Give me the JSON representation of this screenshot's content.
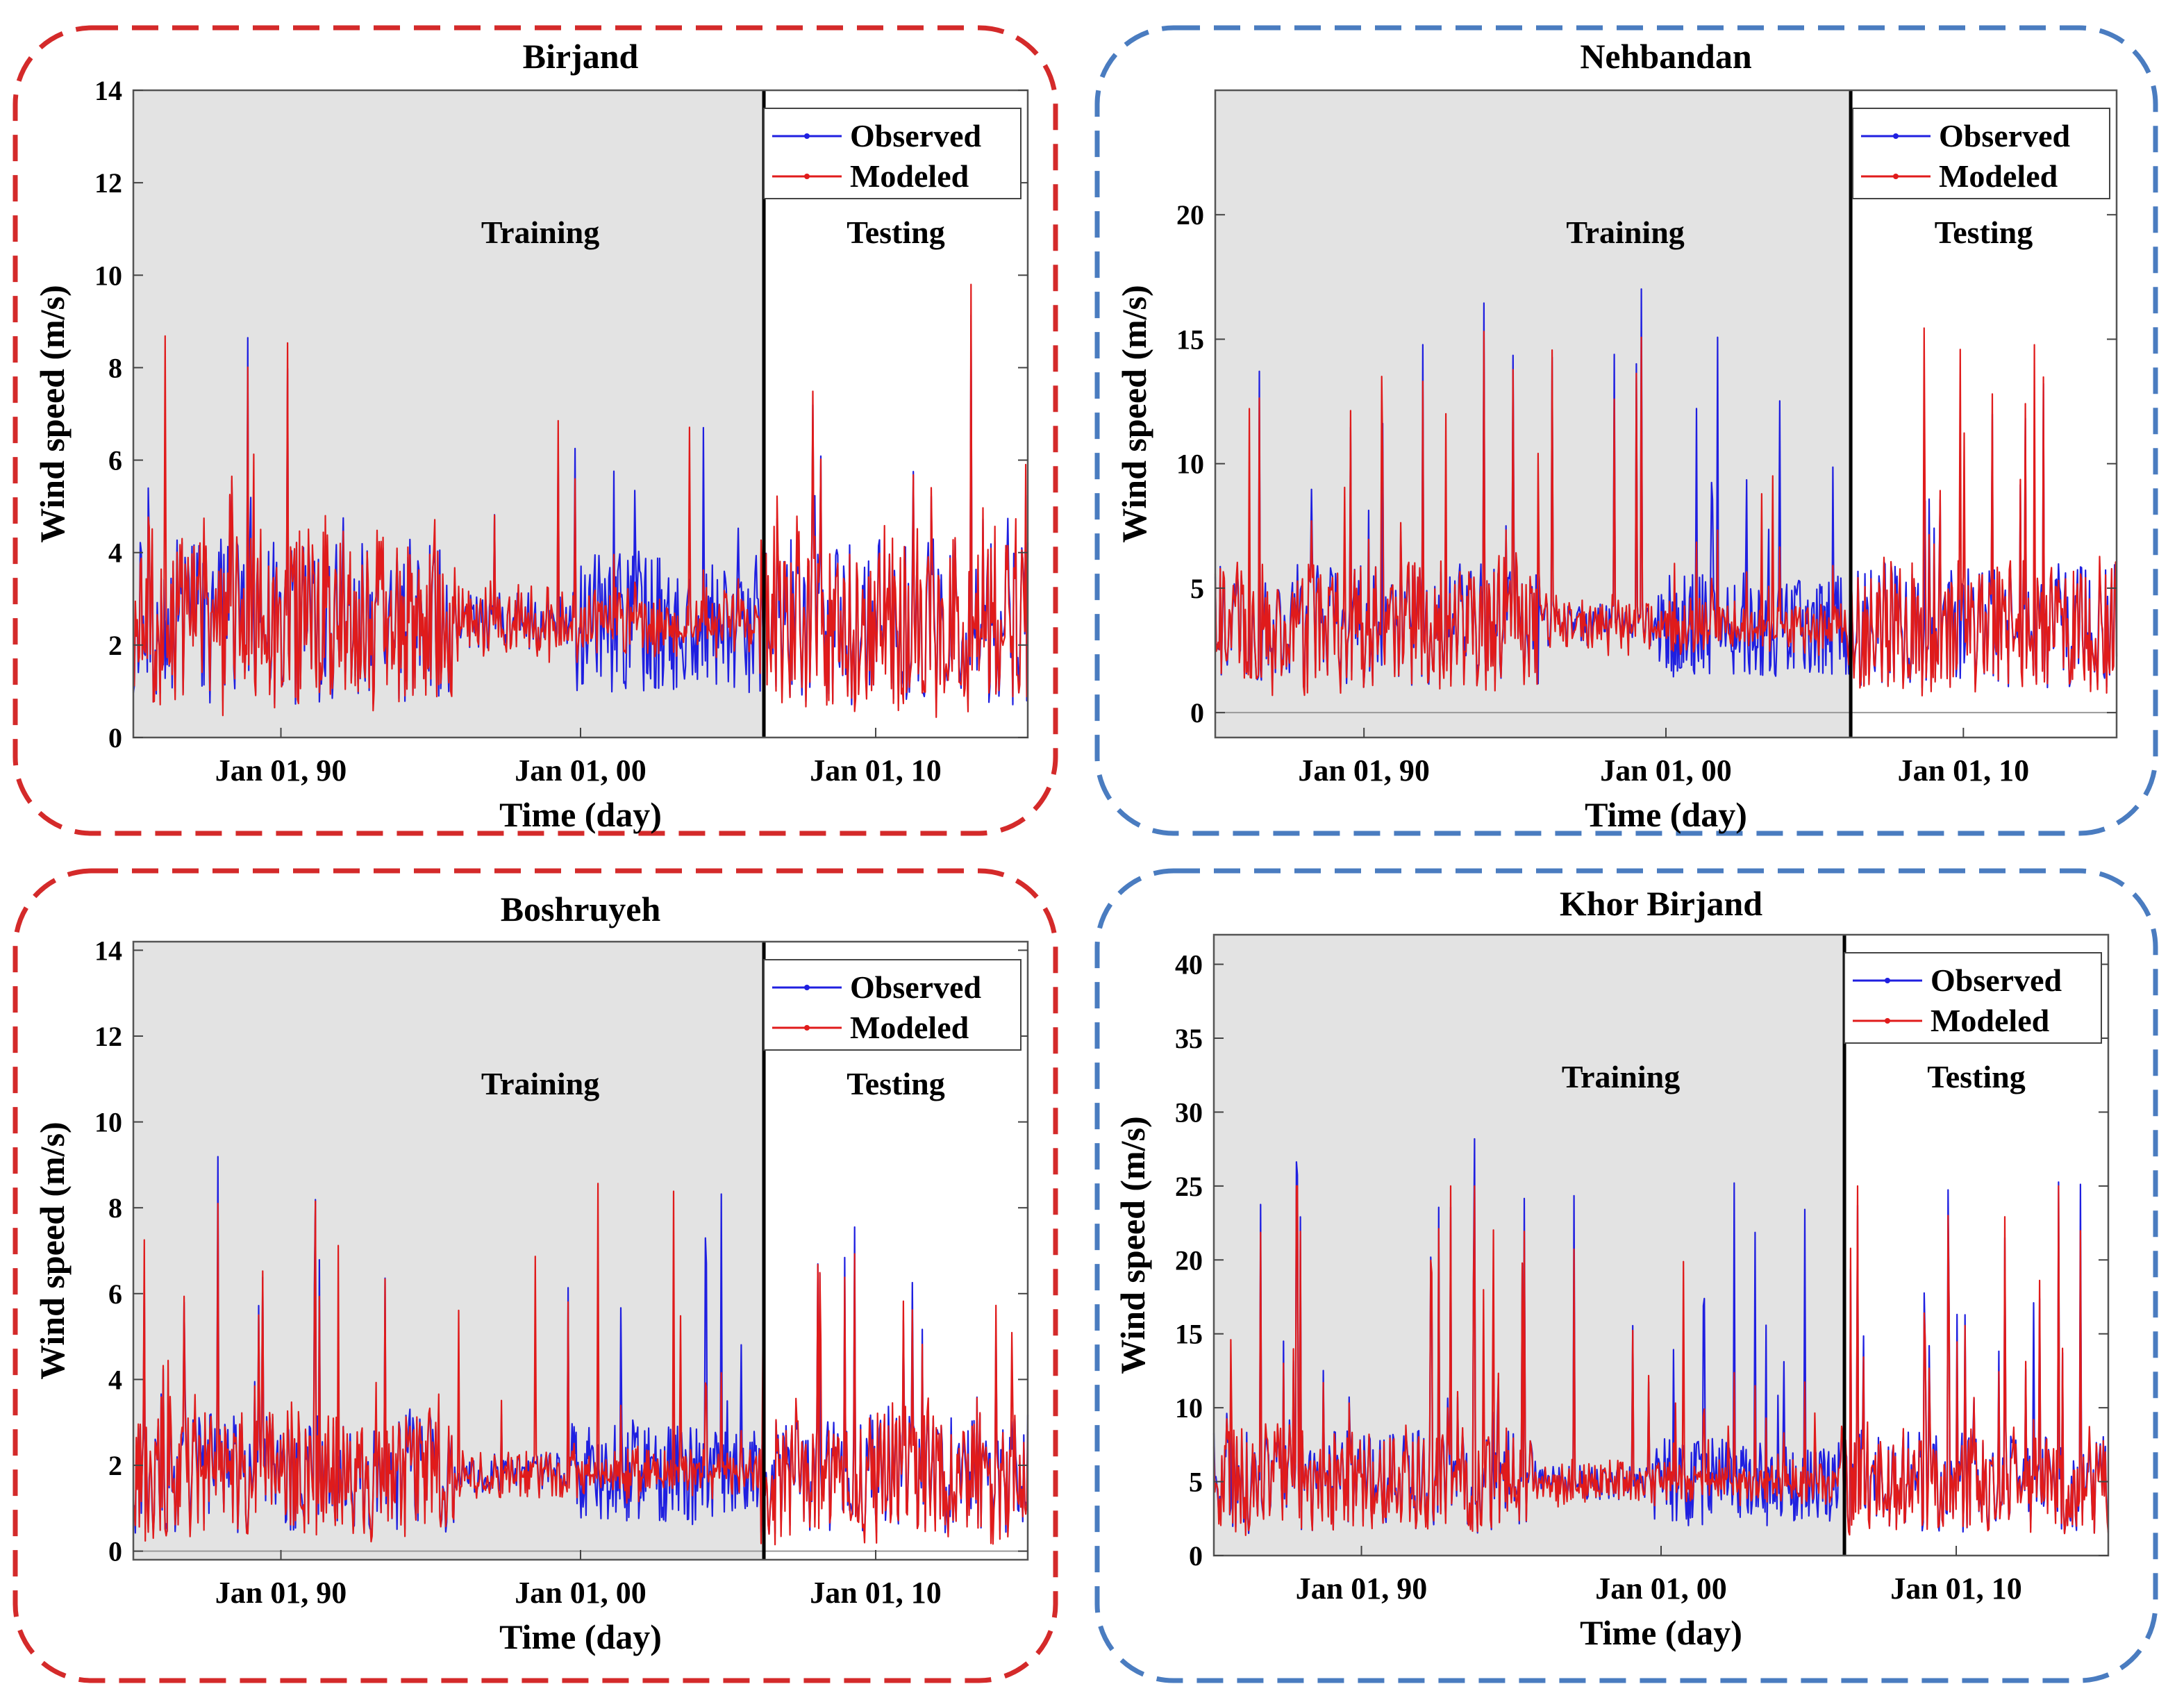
{
  "colors": {
    "observed": "#1f1fe0",
    "modeled": "#e01b1b",
    "training_bg": "#e3e3e3",
    "frame_red": "#d42a2a",
    "frame_blue": "#4a7cc0"
  },
  "legend": {
    "observed": "Observed",
    "modeled": "Modeled"
  },
  "chart_data": [
    {
      "type": "line",
      "title": "Birjand",
      "frame_color": "red",
      "xlabel": "Time (day)",
      "ylabel": "Wind speed (m/s)",
      "x_range": [
        "1984-01-01",
        "2014-12-31"
      ],
      "split_date": "2006-01-01",
      "xticks": [
        "Jan 01, 90",
        "Jan 01, 00",
        "Jan 01, 10"
      ],
      "ylim": [
        0,
        14
      ],
      "yticks": [
        0,
        2,
        4,
        6,
        8,
        10,
        12,
        14
      ],
      "region_labels": [
        "Training",
        "Testing"
      ],
      "series": [
        {
          "name": "Observed",
          "level": 2.5,
          "spread": 1.8,
          "peak_max": 10.0
        },
        {
          "name": "Modeled",
          "level": 2.5,
          "spread": 1.6,
          "peak_max": 9.8
        }
      ]
    },
    {
      "type": "line",
      "title": "Nehbandan",
      "frame_color": "blue",
      "xlabel": "Time (day)",
      "ylabel": "Wind speed (m/s)",
      "x_range": [
        "1984-01-01",
        "2014-12-31"
      ],
      "split_date": "2006-01-01",
      "xticks": [
        "Jan 01, 90",
        "Jan 01, 00",
        "Jan 01, 10"
      ],
      "ylim": [
        -1,
        25
      ],
      "yticks": [
        0,
        5,
        10,
        15,
        20
      ],
      "region_labels": [
        "Training",
        "Testing"
      ],
      "series": [
        {
          "name": "Observed",
          "level": 3.5,
          "spread": 2.5,
          "peak_max": 17.8
        },
        {
          "name": "Modeled",
          "level": 3.5,
          "spread": 2.3,
          "peak_max": 16.5
        }
      ]
    },
    {
      "type": "line",
      "title": "Boshruyeh",
      "frame_color": "red",
      "xlabel": "Time (day)",
      "ylabel": "Wind speed (m/s)",
      "x_range": [
        "1984-01-01",
        "2014-12-31"
      ],
      "split_date": "2006-01-01",
      "xticks": [
        "Jan 01, 90",
        "Jan 01, 00",
        "Jan 01, 10"
      ],
      "ylim": [
        -0.2,
        14.2
      ],
      "yticks": [
        0,
        2,
        4,
        6,
        8,
        10,
        12,
        14
      ],
      "region_labels": [
        "Training",
        "Testing"
      ],
      "series": [
        {
          "name": "Observed",
          "level": 1.8,
          "spread": 1.4,
          "peak_max": 10.2
        },
        {
          "name": "Modeled",
          "level": 1.8,
          "spread": 1.3,
          "peak_max": 9.0
        }
      ]
    },
    {
      "type": "line",
      "title": "Khor Birjand",
      "frame_color": "blue",
      "xlabel": "Time (day)",
      "ylabel": "Wind speed (m/s)",
      "x_range": [
        "1984-01-01",
        "2014-12-31"
      ],
      "split_date": "2006-01-01",
      "xticks": [
        "Jan 01, 90",
        "Jan 01, 00",
        "Jan 01, 10"
      ],
      "ylim": [
        0,
        42
      ],
      "yticks": [
        0,
        5,
        10,
        15,
        20,
        25,
        30,
        35,
        40
      ],
      "region_labels": [
        "Training",
        "Testing"
      ],
      "series": [
        {
          "name": "Observed",
          "level": 5.0,
          "spread": 3.5,
          "peak_max": 30.3
        },
        {
          "name": "Modeled",
          "level": 5.0,
          "spread": 3.2,
          "peak_max": 25.0
        }
      ]
    }
  ]
}
